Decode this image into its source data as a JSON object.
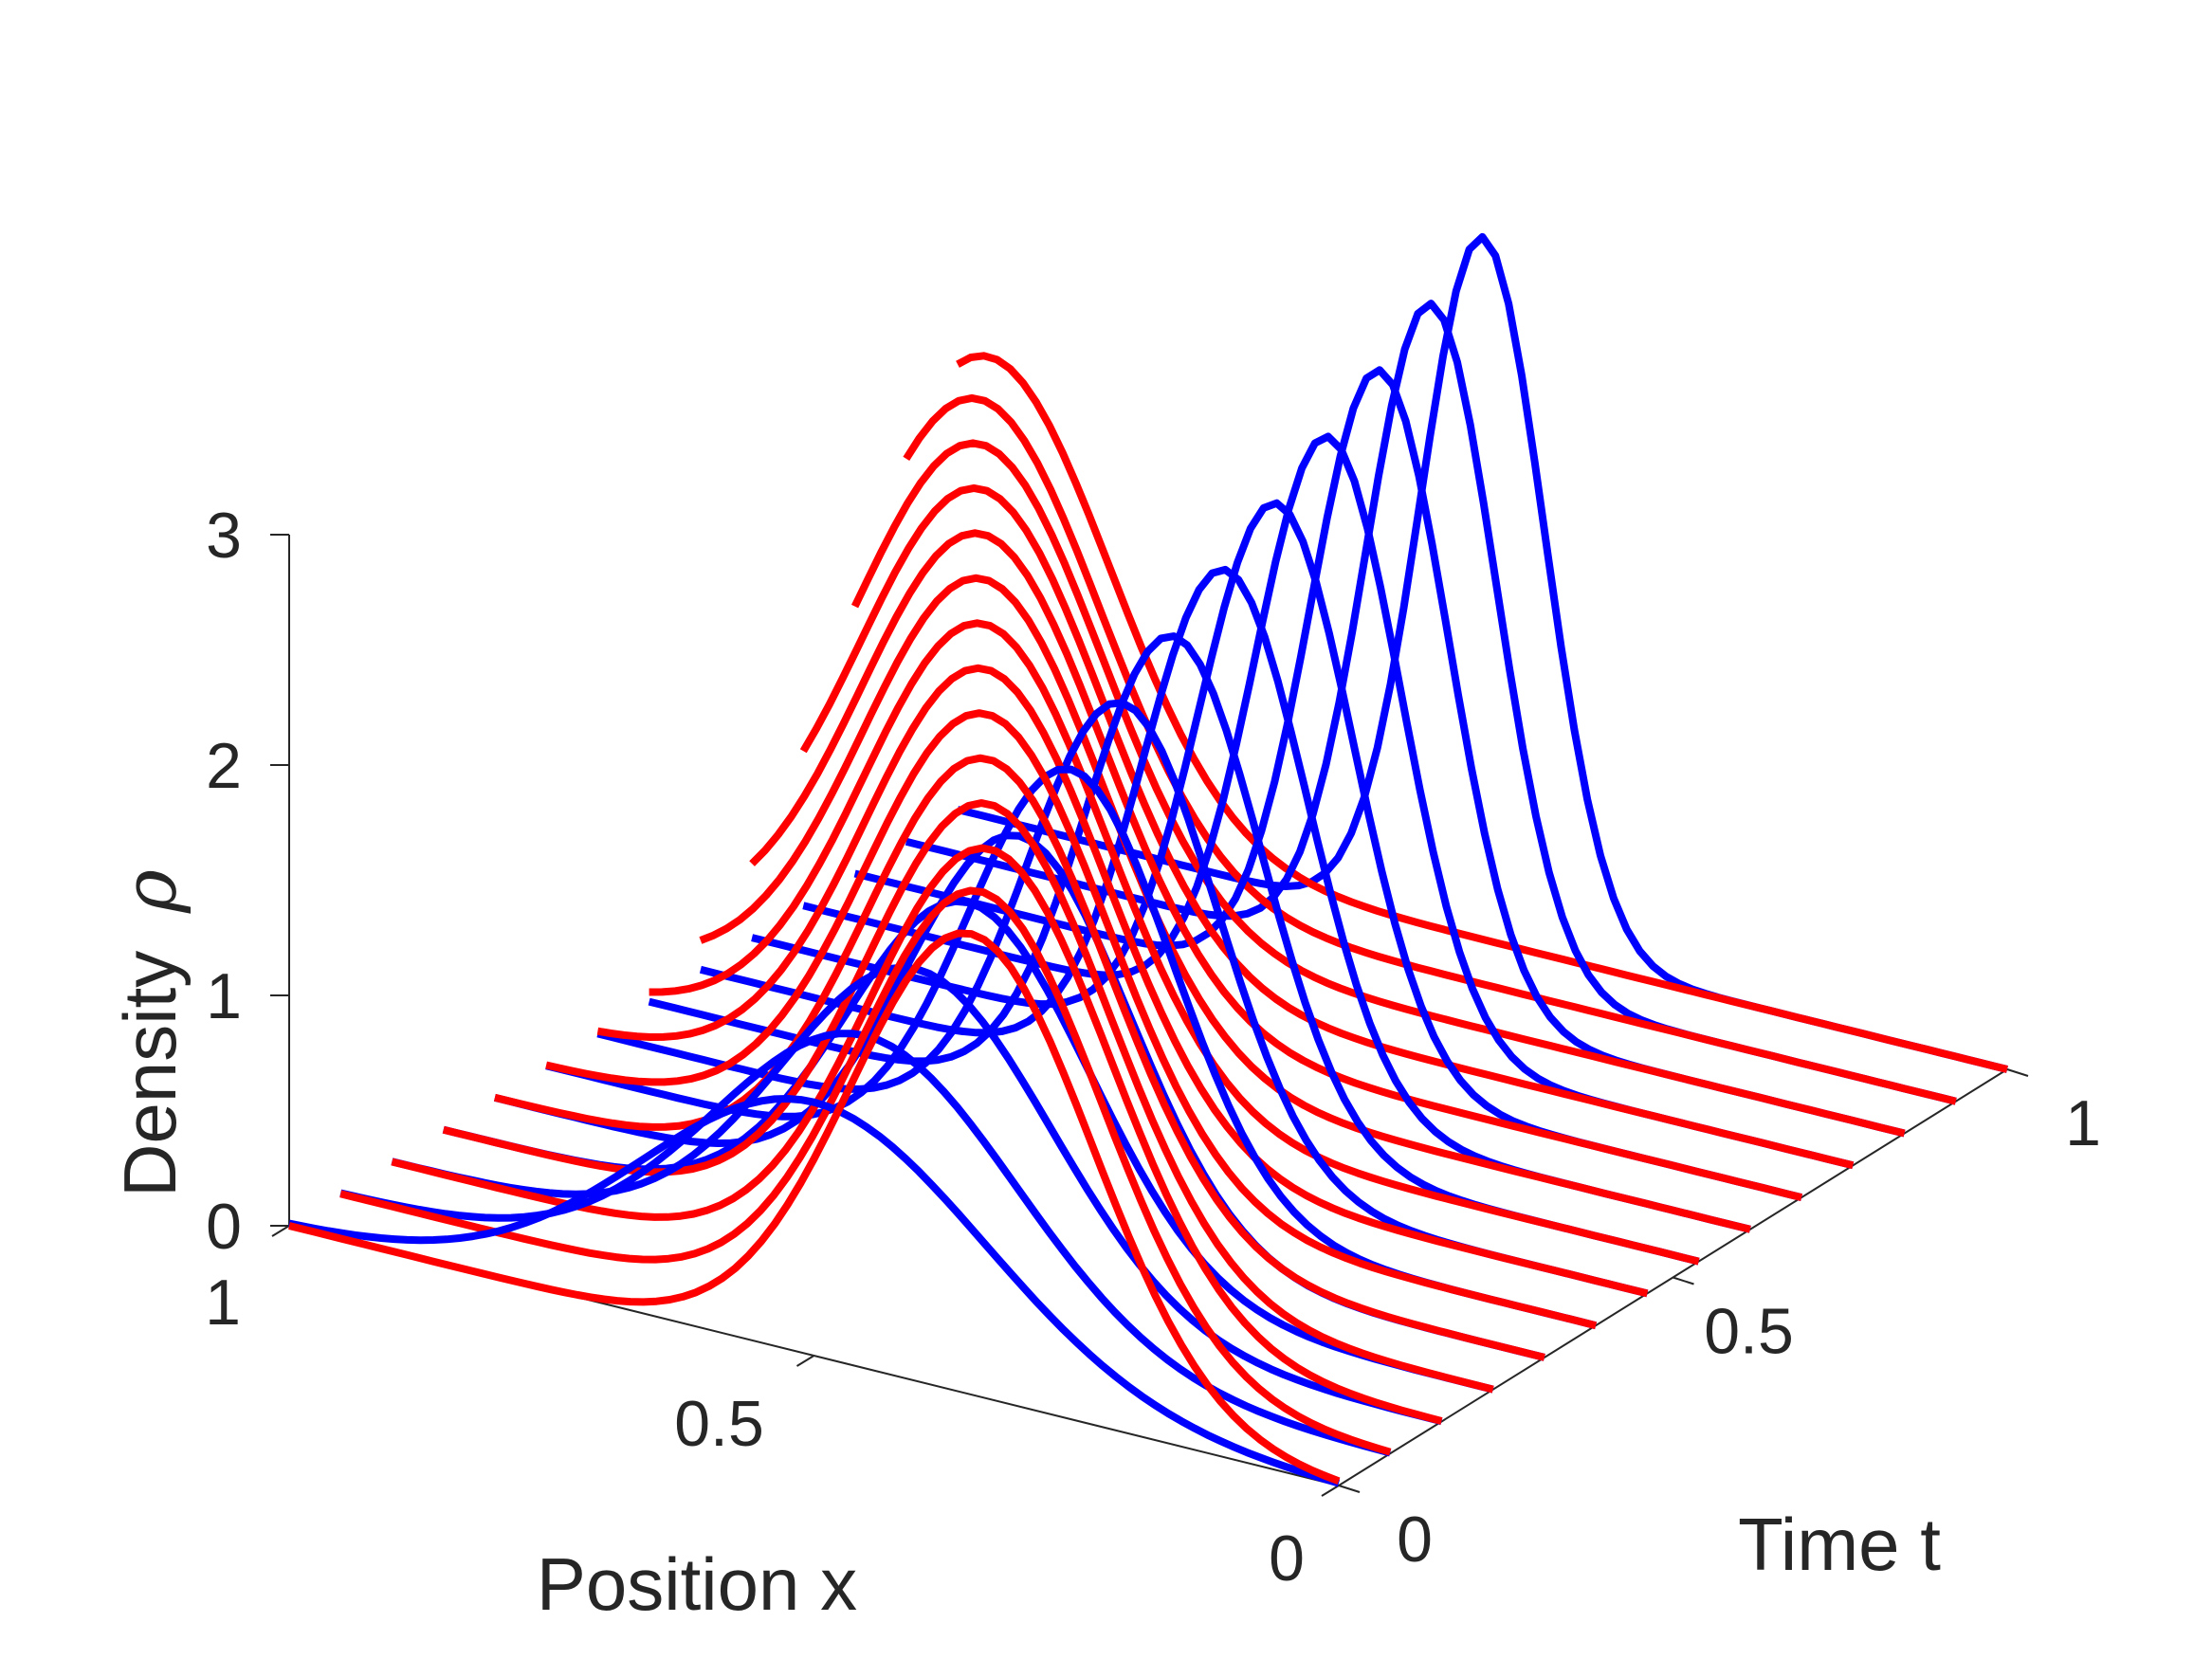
{
  "chart_data": {
    "type": "line",
    "title": "",
    "xlabel": "Position x",
    "tlabel": "Time t",
    "zlabel": "Density",
    "zlabel_symbol": "ρ",
    "xlim": [
      0,
      1
    ],
    "tlim": [
      0,
      1
    ],
    "zlim": [
      0,
      3
    ],
    "x_ticks": [
      0,
      0.5,
      1
    ],
    "x_tick_labels": [
      "0",
      "0.5",
      "1"
    ],
    "t_ticks": [
      0,
      0.5,
      1
    ],
    "t_tick_labels": [
      "0",
      "0.5",
      "1"
    ],
    "z_ticks": [
      0,
      1,
      2,
      3
    ],
    "z_tick_labels": [
      "0",
      "1",
      "2",
      "3"
    ],
    "grid": false,
    "series": [
      {
        "color": "#0000ff",
        "description": "Gaussian density profiles centered at x=0.5, width decreasing and peak increasing with t",
        "x_center": 0.5,
        "t": [
          0,
          0.0769,
          0.1538,
          0.2308,
          0.3077,
          0.3846,
          0.4615,
          0.5385,
          0.6154,
          0.6923,
          0.7692,
          0.8462,
          0.9231,
          1.0
        ],
        "peak": [
          1.1,
          1.25,
          1.4,
          1.55,
          1.7,
          1.85,
          2.0,
          2.15,
          2.3,
          2.45,
          2.6,
          2.75,
          2.9,
          3.05
        ]
      },
      {
        "color": "#ff0000",
        "description": "Gaussian density profiles of constant peak whose center drifts with t",
        "t": [
          0,
          0.0769,
          0.1538,
          0.2308,
          0.3077,
          0.3846,
          0.4615,
          0.5385,
          0.6154,
          0.6923,
          0.7692,
          0.8462,
          0.9231,
          1.0
        ],
        "peak": [
          2.0,
          2.0,
          2.0,
          2.0,
          2.0,
          2.0,
          2.0,
          2.0,
          2.0,
          2.0,
          2.0,
          2.0,
          2.0,
          2.0
        ],
        "center": [
          0.35,
          0.39,
          0.43,
          0.48,
          0.53,
          0.58,
          0.63,
          0.68,
          0.73,
          0.78,
          0.83,
          0.88,
          0.93,
          0.97
        ]
      }
    ]
  }
}
